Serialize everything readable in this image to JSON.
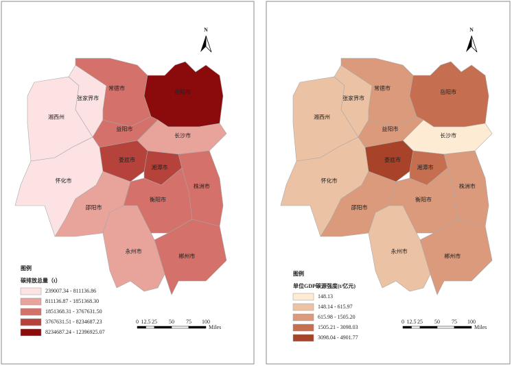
{
  "north": "N",
  "scale": {
    "ticks": [
      "0",
      "12.5",
      "25",
      "50",
      "75",
      "100"
    ],
    "unit": "Miles"
  },
  "maps": [
    {
      "legend_heading": "图例",
      "legend_title": "碳排放总量（t）",
      "legend": [
        {
          "label": "239007.34 - 811136.86",
          "color": "#fce2e2"
        },
        {
          "label": "811136.87 - 1851368.30",
          "color": "#e8a39b"
        },
        {
          "label": "1851368.31 - 3767631.50",
          "color": "#d3716a"
        },
        {
          "label": "3767631.51 - 8234687.23",
          "color": "#b5423b"
        },
        {
          "label": "8234687.24 - 12396925.07",
          "color": "#8b0a0c"
        }
      ],
      "regions": [
        {
          "name": "湘西州",
          "color": "#fce2e2"
        },
        {
          "name": "张家界市",
          "color": "#fce2e2"
        },
        {
          "name": "常德市",
          "color": "#d3716a"
        },
        {
          "name": "岳阳市",
          "color": "#8b0a0c"
        },
        {
          "name": "益阳市",
          "color": "#d3716a"
        },
        {
          "name": "长沙市",
          "color": "#e8a39b"
        },
        {
          "name": "娄底市",
          "color": "#b5423b"
        },
        {
          "name": "湘潭市",
          "color": "#b5423b"
        },
        {
          "name": "株洲市",
          "color": "#d3716a"
        },
        {
          "name": "衡阳市",
          "color": "#d3716a"
        },
        {
          "name": "郴州市",
          "color": "#d3716a"
        },
        {
          "name": "邵阳市",
          "color": "#e8a39b"
        },
        {
          "name": "永州市",
          "color": "#e8a39b"
        },
        {
          "name": "怀化市",
          "color": "#fce2e2"
        }
      ]
    },
    {
      "legend_heading": "图例",
      "legend_title": "单位GDP碳源强度(t/亿元)",
      "legend": [
        {
          "label": "148.13",
          "color": "#fdebd3"
        },
        {
          "label": "148.14 - 615.97",
          "color": "#ecc2a4"
        },
        {
          "label": "615.98 - 1505.20",
          "color": "#da9a7b"
        },
        {
          "label": "1505.21 - 3098.03",
          "color": "#c66e50"
        },
        {
          "label": "3098.04 - 4901.77",
          "color": "#a8432a"
        }
      ],
      "regions": [
        {
          "name": "湘西州",
          "color": "#ecc2a4"
        },
        {
          "name": "张家界市",
          "color": "#ecc2a4"
        },
        {
          "name": "常德市",
          "color": "#da9a7b"
        },
        {
          "name": "岳阳市",
          "color": "#c66e50"
        },
        {
          "name": "益阳市",
          "color": "#da9a7b"
        },
        {
          "name": "长沙市",
          "color": "#fdebd3"
        },
        {
          "name": "娄底市",
          "color": "#a8432a"
        },
        {
          "name": "湘潭市",
          "color": "#c66e50"
        },
        {
          "name": "株洲市",
          "color": "#da9a7b"
        },
        {
          "name": "衡阳市",
          "color": "#da9a7b"
        },
        {
          "name": "郴州市",
          "color": "#da9a7b"
        },
        {
          "name": "邵阳市",
          "color": "#da9a7b"
        },
        {
          "name": "永州市",
          "color": "#ecc2a4"
        },
        {
          "name": "怀化市",
          "color": "#ecc2a4"
        }
      ]
    }
  ]
}
